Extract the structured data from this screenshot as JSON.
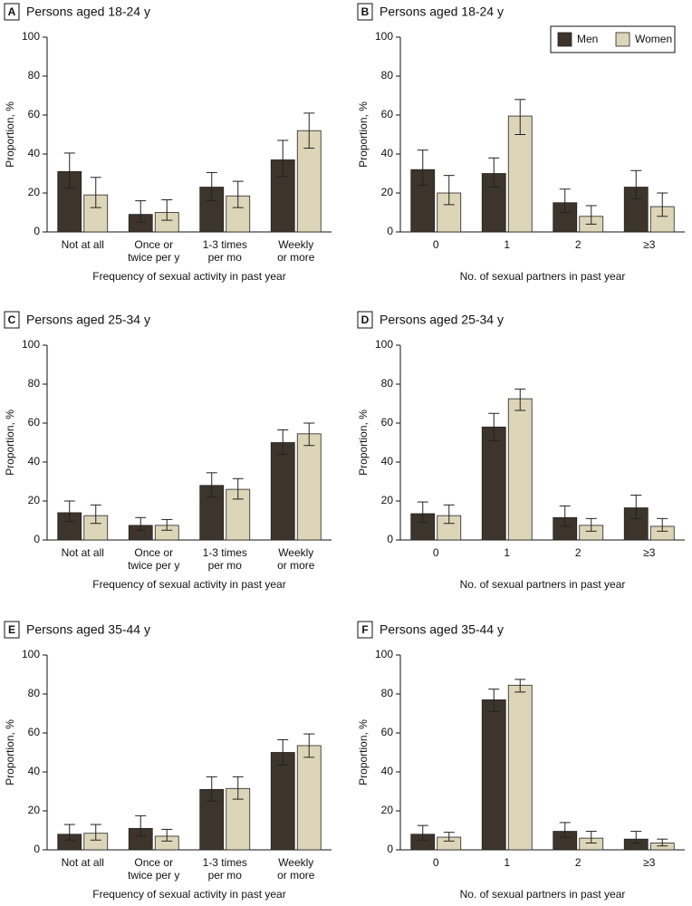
{
  "chart_data": [
    {
      "type": "bar",
      "label": "A",
      "title": "Persons aged 18-24 y",
      "xlabel": "Frequency of sexual activity in past year",
      "ylabel": "Proportion, %",
      "categories": [
        [
          "Not at all"
        ],
        [
          "Once or",
          "twice per y"
        ],
        [
          "1-3 times",
          "per mo"
        ],
        [
          "Weekly",
          "or more"
        ]
      ],
      "series": [
        {
          "name": "Men",
          "color": "#3d342b",
          "values": [
            31,
            9,
            23,
            37
          ],
          "ci_lower": [
            22.5,
            5,
            16,
            28.5
          ],
          "ci_upper": [
            40.5,
            16,
            30.5,
            47
          ]
        },
        {
          "name": "Women",
          "color": "#ddd5b8",
          "values": [
            19,
            10,
            18.5,
            52
          ],
          "ci_lower": [
            12.5,
            6,
            12.5,
            43
          ],
          "ci_upper": [
            28,
            16.5,
            26,
            61
          ]
        }
      ],
      "ylim": [
        0,
        100
      ],
      "yticks": [
        0,
        20,
        40,
        60,
        80,
        100
      ]
    },
    {
      "type": "bar",
      "label": "B",
      "title": "Persons aged 18-24 y",
      "xlabel": "No. of sexual partners in past year",
      "ylabel": "Proportion, %",
      "categories": [
        [
          "0"
        ],
        [
          "1"
        ],
        [
          "2"
        ],
        [
          "≥3"
        ]
      ],
      "series": [
        {
          "name": "Men",
          "color": "#3d342b",
          "values": [
            32,
            30,
            15,
            23
          ],
          "ci_lower": [
            24,
            23,
            10,
            17
          ],
          "ci_upper": [
            42,
            38,
            22,
            31.5
          ]
        },
        {
          "name": "Women",
          "color": "#ddd5b8",
          "values": [
            20,
            59.5,
            8,
            13
          ],
          "ci_lower": [
            14,
            50,
            4,
            8
          ],
          "ci_upper": [
            29,
            68,
            13.5,
            20
          ]
        }
      ],
      "ylim": [
        0,
        100
      ],
      "yticks": [
        0,
        20,
        40,
        60,
        80,
        100
      ],
      "legend": "upper right"
    },
    {
      "type": "bar",
      "label": "C",
      "title": "Persons aged 25-34 y",
      "xlabel": "Frequency of sexual activity in past year",
      "ylabel": "Proportion, %",
      "categories": [
        [
          "Not at all"
        ],
        [
          "Once or",
          "twice per y"
        ],
        [
          "1-3 times",
          "per mo"
        ],
        [
          "Weekly",
          "or more"
        ]
      ],
      "series": [
        {
          "name": "Men",
          "color": "#3d342b",
          "values": [
            14,
            7.5,
            28,
            50
          ],
          "ci_lower": [
            9.5,
            5,
            22,
            44
          ],
          "ci_upper": [
            20,
            11.5,
            34.5,
            56.5
          ]
        },
        {
          "name": "Women",
          "color": "#ddd5b8",
          "values": [
            12.5,
            7.5,
            26,
            54.5
          ],
          "ci_lower": [
            8.5,
            5,
            21,
            48.5
          ],
          "ci_upper": [
            18,
            10.5,
            31.5,
            60
          ]
        }
      ],
      "ylim": [
        0,
        100
      ],
      "yticks": [
        0,
        20,
        40,
        60,
        80,
        100
      ]
    },
    {
      "type": "bar",
      "label": "D",
      "title": "Persons aged 25-34 y",
      "xlabel": "No. of sexual partners in past year",
      "ylabel": "Proportion, %",
      "categories": [
        [
          "0"
        ],
        [
          "1"
        ],
        [
          "2"
        ],
        [
          "≥3"
        ]
      ],
      "series": [
        {
          "name": "Men",
          "color": "#3d342b",
          "values": [
            13.5,
            58,
            11.5,
            16.5
          ],
          "ci_lower": [
            9,
            51,
            7,
            11
          ],
          "ci_upper": [
            19.5,
            65,
            17.5,
            23
          ]
        },
        {
          "name": "Women",
          "color": "#ddd5b8",
          "values": [
            12.5,
            72.5,
            7.5,
            7
          ],
          "ci_lower": [
            8.5,
            66.5,
            4.5,
            4.5
          ],
          "ci_upper": [
            18,
            77.5,
            11,
            11
          ]
        }
      ],
      "ylim": [
        0,
        100
      ],
      "yticks": [
        0,
        20,
        40,
        60,
        80,
        100
      ]
    },
    {
      "type": "bar",
      "label": "E",
      "title": "Persons aged 35-44 y",
      "xlabel": "Frequency of sexual activity in past year",
      "ylabel": "Proportion, %",
      "categories": [
        [
          "Not at all"
        ],
        [
          "Once or",
          "twice per y"
        ],
        [
          "1-3 times",
          "per mo"
        ],
        [
          "Weekly",
          "or more"
        ]
      ],
      "series": [
        {
          "name": "Men",
          "color": "#3d342b",
          "values": [
            8,
            11,
            31,
            50
          ],
          "ci_lower": [
            5,
            7,
            25,
            43.5
          ],
          "ci_upper": [
            13,
            17.5,
            37.5,
            56.5
          ]
        },
        {
          "name": "Women",
          "color": "#ddd5b8",
          "values": [
            8.5,
            7,
            31.5,
            53.5
          ],
          "ci_lower": [
            5,
            4.5,
            26,
            47.5
          ],
          "ci_upper": [
            13,
            10.5,
            37.5,
            59.5
          ]
        }
      ],
      "ylim": [
        0,
        100
      ],
      "yticks": [
        0,
        20,
        40,
        60,
        80,
        100
      ]
    },
    {
      "type": "bar",
      "label": "F",
      "title": "Persons aged 35-44 y",
      "xlabel": "No. of sexual partners in past year",
      "ylabel": "Proportion, %",
      "categories": [
        [
          "0"
        ],
        [
          "1"
        ],
        [
          "2"
        ],
        [
          "≥3"
        ]
      ],
      "series": [
        {
          "name": "Men",
          "color": "#3d342b",
          "values": [
            8,
            77,
            9.5,
            5.5
          ],
          "ci_lower": [
            5,
            71,
            6.5,
            3.5
          ],
          "ci_upper": [
            12.5,
            82.5,
            14,
            9.5
          ]
        },
        {
          "name": "Women",
          "color": "#ddd5b8",
          "values": [
            6.5,
            84.5,
            6,
            3.5
          ],
          "ci_lower": [
            4.5,
            81,
            3.5,
            2
          ],
          "ci_upper": [
            9,
            87.5,
            9.5,
            5.5
          ]
        }
      ],
      "ylim": [
        0,
        100
      ],
      "yticks": [
        0,
        20,
        40,
        60,
        80,
        100
      ]
    }
  ]
}
